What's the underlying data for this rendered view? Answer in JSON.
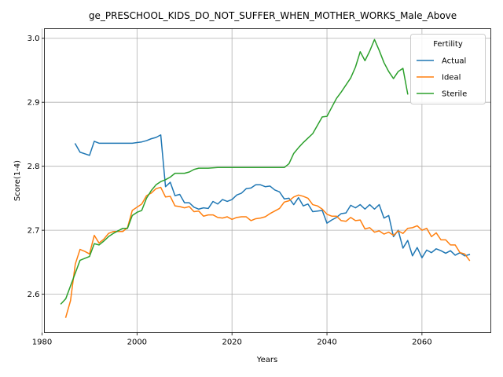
{
  "chart_data": {
    "type": "line",
    "title": "ge_PRESCHOOL_KIDS_DO_NOT_SUFFER_WHEN_MOTHER_WORKS_Male_Above",
    "xlabel": "Years",
    "ylabel": "Score(1-4)",
    "xlim": [
      1980.5,
      2074.5
    ],
    "ylim": [
      2.54,
      3.015
    ],
    "x_ticks": [
      1980,
      2000,
      2020,
      2040,
      2060
    ],
    "x_tick_labels": [
      "1980",
      "2000",
      "2020",
      "2040",
      "2060"
    ],
    "y_ticks": [
      2.6,
      2.7,
      2.8,
      2.9,
      3.0
    ],
    "y_tick_labels": [
      "2.6",
      "2.7",
      "2.8",
      "2.9",
      "3.0"
    ],
    "grid": true,
    "legend": {
      "title": "Fertility",
      "position": "top-right"
    },
    "series": [
      {
        "name": "Actual",
        "color": "#1f77b4",
        "points": [
          [
            1987,
            2.835
          ],
          [
            1988,
            2.822
          ],
          [
            1990,
            2.817
          ],
          [
            1991,
            2.839
          ],
          [
            1992,
            2.836
          ],
          [
            1994,
            2.836
          ],
          [
            1996,
            2.836
          ],
          [
            1998,
            2.836
          ],
          [
            1999,
            2.836
          ],
          [
            2000,
            2.837
          ],
          [
            2001,
            2.838
          ],
          [
            2002,
            2.84
          ],
          [
            2003,
            2.843
          ],
          [
            2004,
            2.845
          ],
          [
            2005,
            2.849
          ],
          [
            2006,
            2.768
          ],
          [
            2007,
            2.775
          ],
          [
            2008,
            2.754
          ],
          [
            2009,
            2.756
          ],
          [
            2010,
            2.743
          ],
          [
            2011,
            2.743
          ],
          [
            2012,
            2.736
          ],
          [
            2013,
            2.733
          ],
          [
            2014,
            2.735
          ],
          [
            2015,
            2.734
          ],
          [
            2016,
            2.745
          ],
          [
            2017,
            2.741
          ],
          [
            2018,
            2.748
          ],
          [
            2019,
            2.745
          ],
          [
            2020,
            2.748
          ],
          [
            2021,
            2.755
          ],
          [
            2022,
            2.758
          ],
          [
            2023,
            2.765
          ],
          [
            2024,
            2.766
          ],
          [
            2025,
            2.771
          ],
          [
            2026,
            2.771
          ],
          [
            2027,
            2.768
          ],
          [
            2028,
            2.769
          ],
          [
            2029,
            2.763
          ],
          [
            2030,
            2.76
          ],
          [
            2031,
            2.749
          ],
          [
            2032,
            2.75
          ],
          [
            2033,
            2.74
          ],
          [
            2034,
            2.751
          ],
          [
            2035,
            2.738
          ],
          [
            2036,
            2.741
          ],
          [
            2037,
            2.729
          ],
          [
            2038,
            2.73
          ],
          [
            2039,
            2.731
          ],
          [
            2040,
            2.711
          ],
          [
            2041,
            2.716
          ],
          [
            2042,
            2.72
          ],
          [
            2043,
            2.726
          ],
          [
            2044,
            2.727
          ],
          [
            2045,
            2.739
          ],
          [
            2046,
            2.735
          ],
          [
            2047,
            2.74
          ],
          [
            2048,
            2.733
          ],
          [
            2049,
            2.74
          ],
          [
            2050,
            2.733
          ],
          [
            2051,
            2.74
          ],
          [
            2052,
            2.719
          ],
          [
            2053,
            2.723
          ],
          [
            2054,
            2.69
          ],
          [
            2055,
            2.7
          ],
          [
            2056,
            2.672
          ],
          [
            2057,
            2.684
          ],
          [
            2058,
            2.66
          ],
          [
            2059,
            2.673
          ],
          [
            2060,
            2.657
          ],
          [
            2061,
            2.669
          ],
          [
            2062,
            2.665
          ],
          [
            2063,
            2.671
          ],
          [
            2064,
            2.668
          ],
          [
            2065,
            2.664
          ],
          [
            2066,
            2.668
          ],
          [
            2067,
            2.661
          ],
          [
            2068,
            2.665
          ],
          [
            2069,
            2.66
          ],
          [
            2070,
            2.662
          ]
        ]
      },
      {
        "name": "Ideal",
        "color": "#ff7f0e",
        "points": [
          [
            1985,
            2.564
          ],
          [
            1986,
            2.59
          ],
          [
            1987,
            2.647
          ],
          [
            1988,
            2.67
          ],
          [
            1989,
            2.667
          ],
          [
            1990,
            2.663
          ],
          [
            1991,
            2.692
          ],
          [
            1992,
            2.68
          ],
          [
            1993,
            2.686
          ],
          [
            1994,
            2.695
          ],
          [
            1995,
            2.698
          ],
          [
            1996,
            2.698
          ],
          [
            1997,
            2.698
          ],
          [
            1998,
            2.704
          ],
          [
            1999,
            2.731
          ],
          [
            2000,
            2.736
          ],
          [
            2001,
            2.741
          ],
          [
            2002,
            2.754
          ],
          [
            2003,
            2.758
          ],
          [
            2004,
            2.765
          ],
          [
            2005,
            2.767
          ],
          [
            2006,
            2.752
          ],
          [
            2007,
            2.753
          ],
          [
            2008,
            2.738
          ],
          [
            2009,
            2.737
          ],
          [
            2010,
            2.735
          ],
          [
            2011,
            2.737
          ],
          [
            2012,
            2.729
          ],
          [
            2013,
            2.73
          ],
          [
            2014,
            2.722
          ],
          [
            2015,
            2.724
          ],
          [
            2016,
            2.724
          ],
          [
            2017,
            2.72
          ],
          [
            2018,
            2.719
          ],
          [
            2019,
            2.721
          ],
          [
            2020,
            2.717
          ],
          [
            2021,
            2.72
          ],
          [
            2022,
            2.721
          ],
          [
            2023,
            2.721
          ],
          [
            2024,
            2.715
          ],
          [
            2025,
            2.718
          ],
          [
            2026,
            2.719
          ],
          [
            2027,
            2.721
          ],
          [
            2028,
            2.726
          ],
          [
            2029,
            2.73
          ],
          [
            2030,
            2.734
          ],
          [
            2031,
            2.744
          ],
          [
            2032,
            2.746
          ],
          [
            2033,
            2.752
          ],
          [
            2034,
            2.755
          ],
          [
            2035,
            2.753
          ],
          [
            2036,
            2.75
          ],
          [
            2037,
            2.74
          ],
          [
            2038,
            2.738
          ],
          [
            2039,
            2.733
          ],
          [
            2040,
            2.725
          ],
          [
            2041,
            2.722
          ],
          [
            2042,
            2.722
          ],
          [
            2043,
            2.715
          ],
          [
            2044,
            2.714
          ],
          [
            2045,
            2.72
          ],
          [
            2046,
            2.715
          ],
          [
            2047,
            2.716
          ],
          [
            2048,
            2.702
          ],
          [
            2049,
            2.704
          ],
          [
            2050,
            2.697
          ],
          [
            2051,
            2.699
          ],
          [
            2052,
            2.694
          ],
          [
            2053,
            2.697
          ],
          [
            2054,
            2.692
          ],
          [
            2055,
            2.699
          ],
          [
            2056,
            2.695
          ],
          [
            2057,
            2.703
          ],
          [
            2058,
            2.704
          ],
          [
            2059,
            2.707
          ],
          [
            2060,
            2.7
          ],
          [
            2061,
            2.703
          ],
          [
            2062,
            2.69
          ],
          [
            2063,
            2.696
          ],
          [
            2064,
            2.685
          ],
          [
            2065,
            2.685
          ],
          [
            2066,
            2.677
          ],
          [
            2067,
            2.677
          ],
          [
            2068,
            2.665
          ],
          [
            2069,
            2.663
          ],
          [
            2070,
            2.653
          ]
        ]
      },
      {
        "name": "Sterile",
        "color": "#2ca02c",
        "points": [
          [
            1984,
            2.585
          ],
          [
            1985,
            2.593
          ],
          [
            1986,
            2.613
          ],
          [
            1987,
            2.633
          ],
          [
            1988,
            2.653
          ],
          [
            1989,
            2.656
          ],
          [
            1990,
            2.659
          ],
          [
            1991,
            2.679
          ],
          [
            1992,
            2.677
          ],
          [
            1993,
            2.683
          ],
          [
            1994,
            2.69
          ],
          [
            1995,
            2.695
          ],
          [
            1996,
            2.699
          ],
          [
            1997,
            2.703
          ],
          [
            1998,
            2.703
          ],
          [
            1999,
            2.723
          ],
          [
            2000,
            2.728
          ],
          [
            2001,
            2.731
          ],
          [
            2002,
            2.75
          ],
          [
            2003,
            2.762
          ],
          [
            2004,
            2.771
          ],
          [
            2005,
            2.776
          ],
          [
            2006,
            2.779
          ],
          [
            2007,
            2.783
          ],
          [
            2008,
            2.789
          ],
          [
            2010,
            2.789
          ],
          [
            2011,
            2.791
          ],
          [
            2012,
            2.795
          ],
          [
            2013,
            2.797
          ],
          [
            2015,
            2.797
          ],
          [
            2017,
            2.798
          ],
          [
            2020,
            2.798
          ],
          [
            2024,
            2.798
          ],
          [
            2028,
            2.798
          ],
          [
            2031,
            2.798
          ],
          [
            2032,
            2.804
          ],
          [
            2033,
            2.82
          ],
          [
            2034,
            2.829
          ],
          [
            2035,
            2.837
          ],
          [
            2036,
            2.844
          ],
          [
            2037,
            2.851
          ],
          [
            2038,
            2.864
          ],
          [
            2039,
            2.877
          ],
          [
            2040,
            2.878
          ],
          [
            2041,
            2.892
          ],
          [
            2042,
            2.906
          ],
          [
            2043,
            2.916
          ],
          [
            2044,
            2.927
          ],
          [
            2045,
            2.938
          ],
          [
            2046,
            2.955
          ],
          [
            2047,
            2.979
          ],
          [
            2048,
            2.965
          ],
          [
            2049,
            2.98
          ],
          [
            2050,
            2.998
          ],
          [
            2051,
            2.981
          ],
          [
            2052,
            2.962
          ],
          [
            2053,
            2.948
          ],
          [
            2054,
            2.937
          ],
          [
            2055,
            2.948
          ],
          [
            2056,
            2.953
          ],
          [
            2057,
            2.913
          ]
        ]
      }
    ]
  }
}
